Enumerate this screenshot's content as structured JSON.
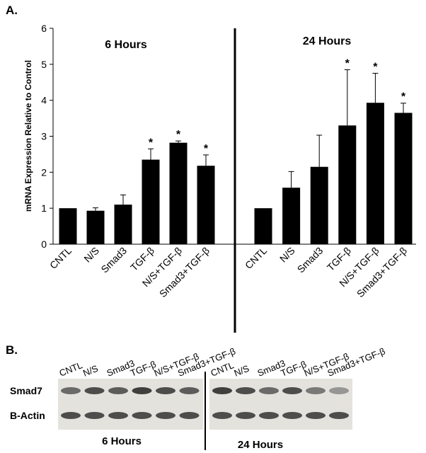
{
  "panel_a_label": "A.",
  "panel_b_label": "B.",
  "chart_data": [
    {
      "type": "bar",
      "title": "6 Hours",
      "y_label": "mRNA Expression  Relative to Control",
      "categories": [
        "CNTL",
        "N/S",
        "Smad3",
        "TGF-β",
        "N/S+TGF-β",
        "Smad3+TGF-β"
      ],
      "values": [
        1.0,
        0.93,
        1.1,
        2.35,
        2.82,
        2.18
      ],
      "errors": [
        0,
        0.08,
        0.27,
        0.3,
        0.05,
        0.3
      ],
      "significance": [
        null,
        null,
        null,
        "*",
        "*",
        "*"
      ],
      "color": "#000000",
      "ylim": [
        0,
        6
      ],
      "yticks": [
        0,
        1,
        2,
        3,
        4,
        5,
        6
      ]
    },
    {
      "type": "bar",
      "title": "24 Hours",
      "categories": [
        "CNTL",
        "N/S",
        "Smad3",
        "TGF-β",
        "N/S+TGF-β",
        "Smad3+TGF-β"
      ],
      "values": [
        1.0,
        1.57,
        2.15,
        3.3,
        3.93,
        3.65
      ],
      "errors": [
        0,
        0.45,
        0.88,
        1.55,
        0.82,
        0.27
      ],
      "significance": [
        null,
        null,
        null,
        "*",
        "*",
        "*"
      ],
      "color": "#000000",
      "ylim": [
        0,
        6
      ]
    }
  ],
  "blot": {
    "lanes_6h": [
      "CNTL",
      "N/S",
      "Smad3",
      "TGF-β",
      "N/S+TGF-β",
      "Smad3+TGF-β"
    ],
    "lanes_24h": [
      "CNTL",
      "N/S",
      "Smad3",
      "TGF-β",
      "N/S+TGF-β",
      "Smad3+TGF-β"
    ],
    "rows": [
      "Smad7",
      "B-Actin"
    ],
    "captions": [
      "6 Hours",
      "24 Hours"
    ]
  }
}
